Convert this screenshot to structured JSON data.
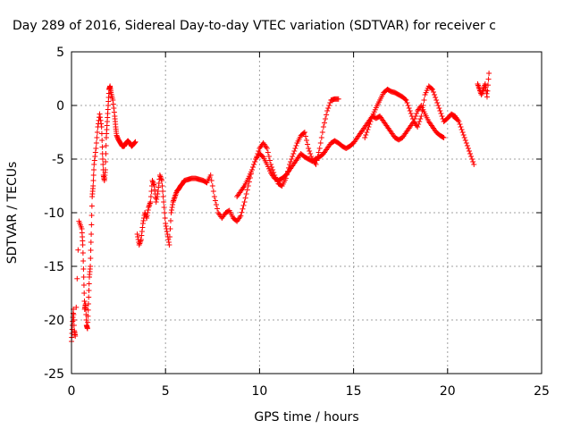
{
  "chart_data": {
    "type": "scatter",
    "title": "Day 289 of 2016, Sidereal Day-to-day VTEC variation (SDTVAR) for receiver c",
    "xlabel": "GPS time / hours",
    "ylabel": "SDTVAR / TECUs",
    "xlim": [
      0,
      25
    ],
    "ylim": [
      -25,
      5
    ],
    "xticks": [
      "0",
      "5",
      "10",
      "15",
      "20",
      "25"
    ],
    "yticks": [
      "5",
      "0",
      "-5",
      "-10",
      "-15",
      "-20",
      "-25"
    ],
    "grid": true,
    "marker": "+",
    "color": "#ff0000",
    "series": [
      {
        "x": [
          0.0,
          0.05,
          0.1,
          0.15,
          0.2,
          0.4,
          0.55,
          0.6,
          0.65,
          0.7,
          0.75,
          0.8,
          0.85,
          0.9,
          0.95,
          1.0,
          1.05,
          1.1,
          1.15,
          1.2,
          1.3,
          1.4,
          1.5,
          1.6,
          1.65,
          1.7,
          1.75,
          1.8,
          1.85,
          1.9,
          1.95,
          2.0,
          2.05,
          2.1,
          2.2,
          2.3,
          2.35,
          2.4,
          2.5,
          2.6,
          2.7,
          2.8,
          2.9,
          3.0,
          3.1,
          3.2,
          3.3,
          3.4
        ],
        "y": [
          -22.0,
          -20.5,
          -19.0,
          -21.0,
          -21.5,
          -10.8,
          -11.5,
          -13.0,
          -16.0,
          -19.0,
          -18.5,
          -20.5,
          -20.8,
          -18.5,
          -16.0,
          -15.0,
          -12.0,
          -8.5,
          -7.5,
          -5.5,
          -4.0,
          -2.0,
          -0.8,
          -2.0,
          -4.5,
          -6.5,
          -7.0,
          -6.0,
          -3.0,
          -1.5,
          0.0,
          1.5,
          1.8,
          1.2,
          0.5,
          -1.0,
          -2.0,
          -2.8,
          -3.2,
          -3.5,
          -3.8,
          -3.8,
          -3.5,
          -3.3,
          -3.5,
          -3.8,
          -3.6,
          -3.4
        ]
      },
      {
        "x": [
          3.5,
          3.6,
          3.7,
          3.8,
          3.9,
          4.0,
          4.1,
          4.2,
          4.3,
          4.4,
          4.5,
          4.6,
          4.7,
          4.8,
          4.9,
          5.0,
          5.1,
          5.2,
          5.3,
          5.4,
          5.5,
          5.6,
          5.7,
          5.8,
          5.9,
          6.0,
          6.2,
          6.4,
          6.6,
          6.8,
          7.0,
          7.2,
          7.4,
          7.6,
          7.8,
          8.0,
          8.2,
          8.4,
          8.6,
          8.8,
          9.0,
          9.2,
          9.4,
          9.6,
          9.8,
          10.0,
          10.2,
          10.4,
          10.6,
          10.8,
          11.0,
          11.2,
          11.4,
          11.6,
          11.8,
          12.0,
          12.2,
          12.4,
          12.6,
          12.8,
          13.0,
          13.2,
          13.4,
          13.6,
          13.8,
          14.0,
          14.2
        ],
        "y": [
          -12.0,
          -13.0,
          -12.5,
          -11.0,
          -10.0,
          -10.5,
          -9.5,
          -9.0,
          -7.0,
          -7.5,
          -9.0,
          -8.0,
          -6.5,
          -7.0,
          -9.0,
          -11.0,
          -12.0,
          -13.0,
          -10.0,
          -9.0,
          -8.5,
          -8.0,
          -7.8,
          -7.5,
          -7.3,
          -7.0,
          -6.9,
          -6.8,
          -6.8,
          -6.9,
          -7.0,
          -7.2,
          -6.5,
          -8.5,
          -10.0,
          -10.5,
          -10.0,
          -9.8,
          -10.5,
          -10.8,
          -10.3,
          -9.0,
          -7.5,
          -6.0,
          -5.0,
          -4.0,
          -3.5,
          -4.0,
          -5.5,
          -6.5,
          -7.3,
          -7.5,
          -6.8,
          -5.5,
          -4.5,
          -3.5,
          -2.8,
          -2.5,
          -4.0,
          -5.0,
          -5.5,
          -4.0,
          -2.0,
          -0.5,
          0.5,
          0.6,
          0.6
        ]
      },
      {
        "x": [
          8.8,
          9.0,
          9.2,
          9.4,
          9.6,
          9.8,
          10.0,
          10.2,
          10.4,
          10.6,
          10.8,
          11.0,
          11.2,
          11.4,
          11.6,
          11.8,
          12.0,
          12.2,
          12.4,
          12.6,
          12.8,
          13.0,
          13.2,
          13.4,
          13.6,
          13.8,
          14.0,
          14.2,
          14.4,
          14.6,
          14.8,
          15.0,
          15.2,
          15.4,
          15.6,
          15.8,
          16.0,
          16.2,
          16.4,
          16.6,
          16.8,
          17.0,
          17.2,
          17.4,
          17.6,
          17.8,
          18.0,
          18.2,
          18.4,
          18.6,
          18.8,
          19.0,
          19.2,
          19.4,
          19.6,
          19.8
        ],
        "y": [
          -8.5,
          -8.0,
          -7.5,
          -6.8,
          -6.0,
          -5.0,
          -4.5,
          -4.8,
          -5.5,
          -6.3,
          -6.8,
          -7.0,
          -6.8,
          -6.5,
          -6.0,
          -5.5,
          -5.0,
          -4.5,
          -4.8,
          -5.0,
          -5.2,
          -5.0,
          -4.8,
          -4.5,
          -4.0,
          -3.5,
          -3.3,
          -3.5,
          -3.8,
          -4.0,
          -3.8,
          -3.5,
          -3.0,
          -2.5,
          -2.0,
          -1.5,
          -1.0,
          -1.2,
          -1.0,
          -1.5,
          -2.0,
          -2.5,
          -3.0,
          -3.2,
          -3.0,
          -2.5,
          -2.0,
          -1.5,
          -0.5,
          0.0,
          -0.8,
          -1.5,
          -2.0,
          -2.5,
          -2.8,
          -3.0
        ]
      },
      {
        "x": [
          15.6,
          15.8,
          16.0,
          16.2,
          16.4,
          16.6,
          16.8,
          17.0,
          17.2,
          17.4,
          17.6,
          17.8,
          18.0,
          18.2,
          18.4,
          18.6,
          18.8,
          19.0,
          19.2,
          19.4,
          19.6,
          19.8,
          20.0,
          20.2,
          20.4,
          20.6,
          20.8,
          21.0,
          21.2,
          21.4
        ],
        "y": [
          -3.0,
          -2.0,
          -1.0,
          -0.2,
          0.5,
          1.2,
          1.5,
          1.3,
          1.2,
          1.0,
          0.8,
          0.5,
          -0.5,
          -1.5,
          -2.0,
          -1.0,
          1.0,
          1.8,
          1.5,
          0.5,
          -0.5,
          -1.5,
          -1.2,
          -0.8,
          -1.0,
          -1.5,
          -2.5,
          -3.5,
          -4.5,
          -5.5
        ]
      },
      {
        "x": [
          20.3,
          20.5
        ],
        "y": [
          -1.0,
          -1.3
        ]
      },
      {
        "x": [
          21.6,
          21.7,
          21.8,
          21.9,
          22.0,
          22.1,
          22.2
        ],
        "y": [
          2.0,
          1.5,
          1.0,
          1.5,
          2.0,
          0.8,
          3.0
        ]
      }
    ]
  }
}
